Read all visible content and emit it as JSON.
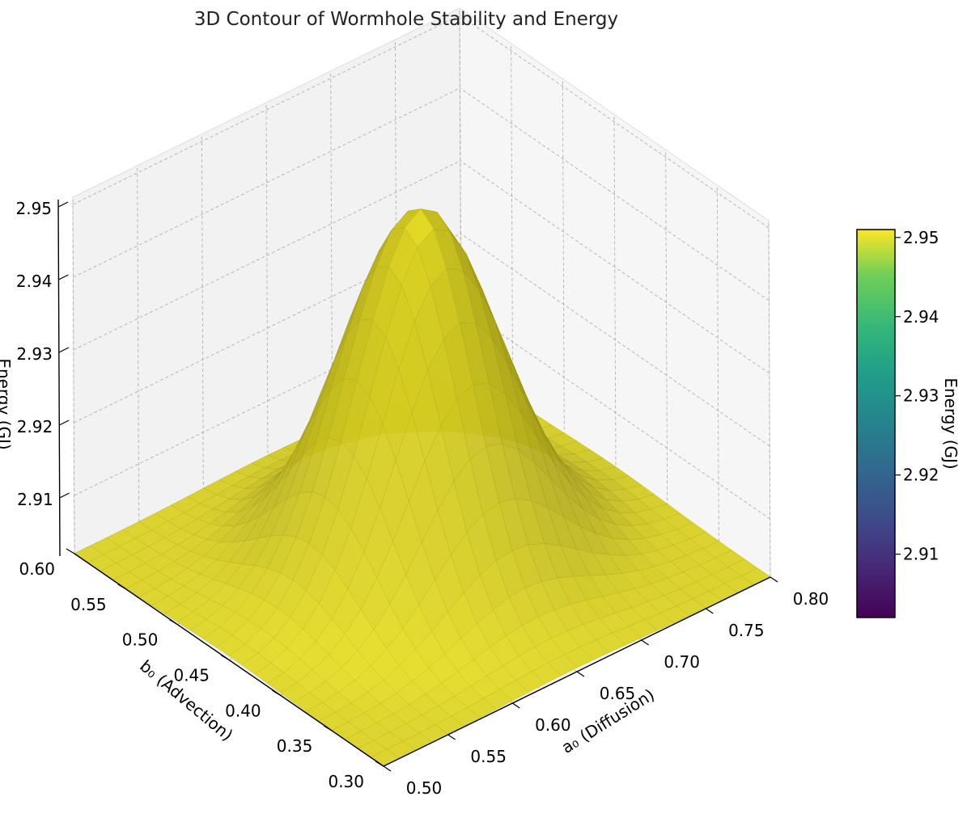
{
  "chart_data": {
    "type": "surface",
    "title": "3D Contour of Wormhole Stability and Energy",
    "xlabel": "a₀ (Diffusion)",
    "ylabel": "b₀ (Advection)",
    "zlabel": "Energy (GJ)",
    "colorbar_label": "Energy (GJ)",
    "colormap": "viridis",
    "surface_color": "#e2d923",
    "xlim": [
      0.5,
      0.8
    ],
    "ylim": [
      0.3,
      0.6
    ],
    "zlim": [
      2.902,
      2.951
    ],
    "x_ticks": [
      "0.50",
      "0.55",
      "0.60",
      "0.65",
      "0.70",
      "0.75",
      "0.80"
    ],
    "y_ticks": [
      "0.30",
      "0.35",
      "0.40",
      "0.45",
      "0.50",
      "0.55",
      "0.60"
    ],
    "z_ticks": [
      "2.91",
      "2.92",
      "2.93",
      "2.94",
      "2.95"
    ],
    "colorbar_ticks": [
      "2.91",
      "2.92",
      "2.93",
      "2.94",
      "2.95"
    ],
    "peak": {
      "x": 0.65,
      "y": 0.45,
      "z": 2.951
    },
    "base_energy": 2.902,
    "grid": true,
    "legend": "none"
  }
}
